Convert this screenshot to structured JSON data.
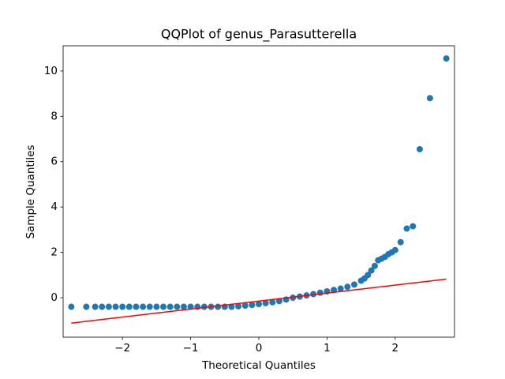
{
  "chart_data": {
    "type": "scatter",
    "title": "QQPlot of genus_Parasutterella",
    "x_label": "Theoretical Quantiles",
    "y_label": "Sample Quantiles",
    "color": "#1f77b4",
    "x": [
      -2.75,
      -2.53,
      -2.4,
      -2.3,
      -2.2,
      -2.1,
      -2.0,
      -1.9,
      -1.8,
      -1.7,
      -1.6,
      -1.5,
      -1.4,
      -1.3,
      -1.2,
      -1.1,
      -1.0,
      -0.9,
      -0.8,
      -0.7,
      -0.6,
      -0.5,
      -0.4,
      -0.3,
      -0.2,
      -0.1,
      0.0,
      0.1,
      0.2,
      0.3,
      0.4,
      0.5,
      0.6,
      0.7,
      0.8,
      0.9,
      1.0,
      1.1,
      1.2,
      1.3,
      1.4,
      1.5,
      1.55,
      1.6,
      1.65,
      1.7,
      1.75,
      1.8,
      1.85,
      1.9,
      1.95,
      2.0,
      2.08,
      2.17,
      2.26,
      2.36,
      2.51,
      2.75
    ],
    "values": [
      -0.4,
      -0.4,
      -0.4,
      -0.4,
      -0.4,
      -0.4,
      -0.4,
      -0.4,
      -0.4,
      -0.4,
      -0.4,
      -0.4,
      -0.4,
      -0.4,
      -0.4,
      -0.4,
      -0.4,
      -0.4,
      -0.4,
      -0.4,
      -0.4,
      -0.4,
      -0.4,
      -0.38,
      -0.35,
      -0.32,
      -0.28,
      -0.24,
      -0.2,
      -0.15,
      -0.08,
      0.0,
      0.05,
      0.1,
      0.16,
      0.22,
      0.28,
      0.34,
      0.4,
      0.48,
      0.58,
      0.75,
      0.85,
      1.0,
      1.2,
      1.4,
      1.65,
      1.72,
      1.8,
      1.92,
      2.0,
      2.1,
      2.45,
      3.05,
      3.15,
      6.55,
      8.8,
      10.55
    ],
    "fit_line": {
      "x": [
        -2.75,
        2.75
      ],
      "values": [
        -1.12,
        0.82
      ],
      "color": "#ff0000"
    },
    "xlim": [
      -2.87,
      2.87
    ],
    "ylim": [
      -1.74,
      11.11
    ],
    "xticks": [
      {
        "value": -2,
        "label": "−2"
      },
      {
        "value": -1,
        "label": "−1"
      },
      0,
      1,
      2
    ],
    "yticks": [
      0,
      2,
      4,
      6,
      8,
      10
    ]
  }
}
